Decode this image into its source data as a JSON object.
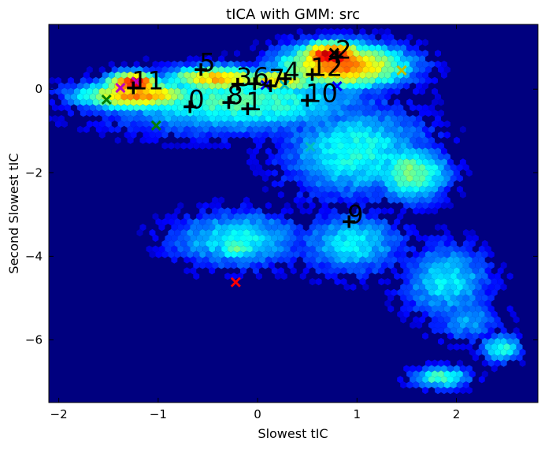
{
  "chart_data": {
    "type": "scatter",
    "title": "tICA with GMM: src",
    "xlabel": "Slowest tIC",
    "ylabel": "Second Slowest tIC",
    "xlim": [
      -2.1,
      2.82
    ],
    "ylim": [
      -7.5,
      1.55
    ],
    "xticks": [
      -2,
      -1,
      0,
      1,
      2
    ],
    "yticks": [
      0,
      -2,
      -4,
      -6
    ],
    "grid": false,
    "background_color": "#00007f",
    "density": {
      "type": "hexbin",
      "colormap": "jet",
      "regions": [
        {
          "x": -0.2,
          "y": -0.3,
          "rx": 1.8,
          "ry": 1.0,
          "level": 0.45
        },
        {
          "x": -1.2,
          "y": -0.15,
          "rx": 0.8,
          "ry": 0.45,
          "level": 0.75
        },
        {
          "x": 0.85,
          "y": 0.55,
          "rx": 0.85,
          "ry": 0.7,
          "level": 0.78
        },
        {
          "x": -0.4,
          "y": 0.25,
          "rx": 0.7,
          "ry": 0.4,
          "level": 0.7
        },
        {
          "x": -1.25,
          "y": 0.15,
          "rx": 0.35,
          "ry": 0.35,
          "level": 0.92
        },
        {
          "x": 0.75,
          "y": 0.8,
          "rx": 0.45,
          "ry": 0.45,
          "level": 0.95
        },
        {
          "x": 0.2,
          "y": 0.2,
          "rx": 0.6,
          "ry": 0.35,
          "level": 0.68
        },
        {
          "x": 1.0,
          "y": -1.5,
          "rx": 1.0,
          "ry": 1.5,
          "level": 0.4
        },
        {
          "x": 1.55,
          "y": -2.0,
          "rx": 0.5,
          "ry": 0.9,
          "level": 0.5
        },
        {
          "x": -0.2,
          "y": -3.6,
          "rx": 0.9,
          "ry": 0.9,
          "level": 0.38
        },
        {
          "x": -0.2,
          "y": -3.8,
          "rx": 0.3,
          "ry": 0.4,
          "level": 0.5
        },
        {
          "x": 0.95,
          "y": -3.7,
          "rx": 0.7,
          "ry": 1.0,
          "level": 0.36
        },
        {
          "x": 1.9,
          "y": -4.6,
          "rx": 0.6,
          "ry": 1.2,
          "level": 0.36
        },
        {
          "x": 2.45,
          "y": -6.2,
          "rx": 0.28,
          "ry": 0.45,
          "level": 0.42
        },
        {
          "x": 1.85,
          "y": -6.9,
          "rx": 0.4,
          "ry": 0.35,
          "level": 0.45
        },
        {
          "x": 2.1,
          "y": -5.5,
          "rx": 0.5,
          "ry": 0.8,
          "level": 0.28
        }
      ]
    },
    "cluster_centers": [
      {
        "label": "0",
        "x": -0.68,
        "y": -0.42
      },
      {
        "label": "1",
        "x": -0.1,
        "y": -0.47
      },
      {
        "label": "2",
        "x": 0.8,
        "y": 0.77
      },
      {
        "label": "3",
        "x": -0.2,
        "y": 0.12
      },
      {
        "label": "4",
        "x": 0.28,
        "y": 0.25
      },
      {
        "label": "5",
        "x": -0.57,
        "y": 0.47
      },
      {
        "label": "6",
        "x": -0.03,
        "y": 0.13
      },
      {
        "label": "7",
        "x": 0.13,
        "y": 0.08
      },
      {
        "label": "8",
        "x": -0.29,
        "y": -0.32
      },
      {
        "label": "9",
        "x": 0.92,
        "y": -3.17
      },
      {
        "label": "10",
        "x": 0.5,
        "y": -0.27
      },
      {
        "label": "11",
        "x": -1.25,
        "y": 0.03
      },
      {
        "label": "12",
        "x": 0.55,
        "y": 0.35
      }
    ],
    "gmm_means": [
      {
        "x": -1.52,
        "y": -0.25,
        "color": "#007f00"
      },
      {
        "x": -1.38,
        "y": 0.03,
        "color": "#bf00bf"
      },
      {
        "x": -1.22,
        "y": 0.18,
        "color": "#bf00bf"
      },
      {
        "x": -1.02,
        "y": -0.87,
        "color": "#007f00"
      },
      {
        "x": -0.22,
        "y": -4.62,
        "color": "#ff0000"
      },
      {
        "x": 0.08,
        "y": 0.1,
        "color": "#0000ff"
      },
      {
        "x": 0.27,
        "y": 0.1,
        "color": "#00bfbf"
      },
      {
        "x": 0.77,
        "y": 0.87,
        "color": "#000000"
      },
      {
        "x": 0.8,
        "y": 0.07,
        "color": "#0000ff"
      },
      {
        "x": 0.53,
        "y": -1.38,
        "color": "#00bfbf"
      },
      {
        "x": 1.45,
        "y": 0.45,
        "color": "#bfbf00"
      }
    ]
  }
}
